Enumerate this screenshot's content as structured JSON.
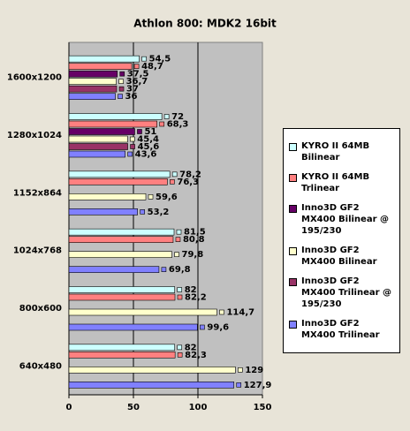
{
  "chart_data": {
    "type": "hbar",
    "title": "Athlon 800: MDK2 16bit",
    "categories": [
      "1600x1200",
      "1280x1024",
      "1152x864",
      "1024x768",
      "800x600",
      "640x480"
    ],
    "series": [
      {
        "name": "KYRO II 64MB Bilinear",
        "color": "#ccffff",
        "values": [
          54.5,
          72,
          78.2,
          81.5,
          82,
          82
        ],
        "value_labels": [
          "54,5",
          "72",
          "78,2",
          "81,5",
          "82",
          "82"
        ]
      },
      {
        "name": "KYRO II 64MB Trlinear",
        "color": "#ff8080",
        "values": [
          48.7,
          68.3,
          76.3,
          80.8,
          82.2,
          82.3
        ],
        "value_labels": [
          "48,7",
          "68,3",
          "76,3",
          "80,8",
          "82,2",
          "82,3"
        ]
      },
      {
        "name": "Inno3D GF2 MX400 Bilinear @ 195/230",
        "color": "#660066",
        "values": [
          37.5,
          51,
          null,
          null,
          null,
          null
        ],
        "value_labels": [
          "37,5",
          "51",
          null,
          null,
          null,
          null
        ]
      },
      {
        "name": "Inno3D GF2 MX400 Bilinear",
        "color": "#ffffcc",
        "values": [
          36.7,
          45.4,
          59.6,
          79.8,
          114.7,
          129
        ],
        "value_labels": [
          "36,7",
          "45,4",
          "59,6",
          "79,8",
          "114,7",
          "129"
        ]
      },
      {
        "name": "Inno3D GF2 MX400 Trilinear @ 195/230",
        "color": "#993366",
        "values": [
          37,
          45.6,
          null,
          null,
          null,
          null
        ],
        "value_labels": [
          "37",
          "45,6",
          null,
          null,
          null,
          null
        ]
      },
      {
        "name": "Inno3D GF2 MX400 Trilinear",
        "color": "#8080ff",
        "values": [
          36,
          43.6,
          53.2,
          69.8,
          99.6,
          127.9
        ],
        "value_labels": [
          "36",
          "43,6",
          "53,2",
          "69,8",
          "99,6",
          "127,9"
        ]
      }
    ],
    "xlim": [
      0,
      150
    ],
    "xticks": [
      0,
      50,
      100,
      150
    ],
    "grid": true
  }
}
